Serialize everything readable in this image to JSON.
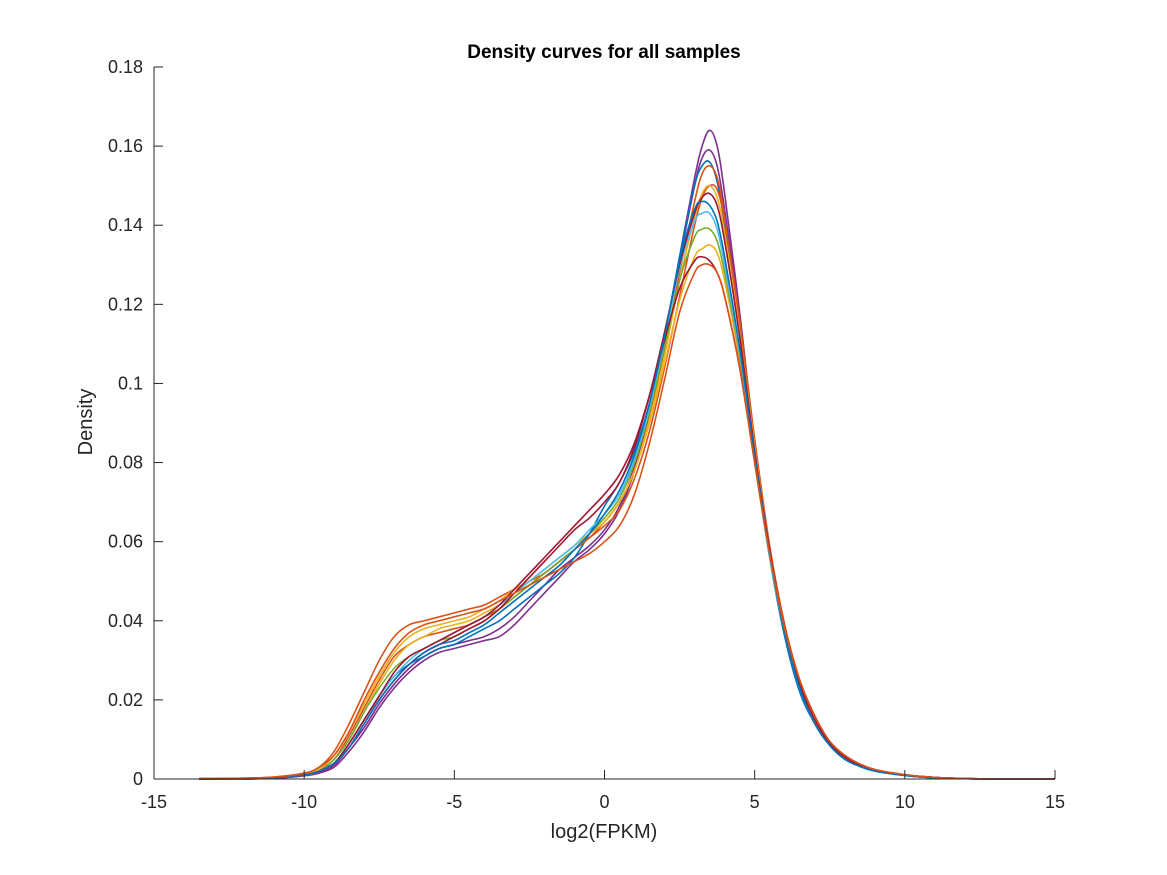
{
  "chart_data": {
    "type": "line",
    "title": "Density curves for all samples",
    "xlabel": "log2(FPKM)",
    "ylabel": "Density",
    "xlim": [
      -15,
      15
    ],
    "ylim": [
      0,
      0.18
    ],
    "xticks": [
      -15,
      -10,
      -5,
      0,
      5,
      10,
      15
    ],
    "xtick_labels": [
      "-15",
      "-10",
      "-5",
      "0",
      "5",
      "10",
      "15"
    ],
    "yticks": [
      0,
      0.02,
      0.04,
      0.06,
      0.08,
      0.1,
      0.12,
      0.14,
      0.16,
      0.18
    ],
    "ytick_labels": [
      "0",
      "0.02",
      "0.04",
      "0.06",
      "0.08",
      "0.1",
      "0.12",
      "0.14",
      "0.16",
      "0.18"
    ],
    "grid": false,
    "legend": "none",
    "x": [
      -13.5,
      -12,
      -11,
      -10,
      -9.5,
      -9,
      -8.5,
      -8,
      -7.5,
      -7,
      -6.5,
      -6,
      -5.5,
      -5,
      -4.5,
      -4,
      -3.5,
      -3,
      -2.5,
      -2,
      -1.5,
      -1,
      -0.5,
      0,
      0.5,
      1,
      1.5,
      2,
      2.5,
      3,
      3.25,
      3.5,
      3.75,
      4,
      4.5,
      5,
      5.5,
      6,
      6.5,
      7,
      7.5,
      8,
      8.5,
      9,
      10,
      11,
      12,
      13,
      15
    ],
    "series": [
      {
        "color": "#7E2F8E",
        "values": [
          0,
          0,
          0.0002,
          0.0008,
          0.0015,
          0.003,
          0.007,
          0.012,
          0.018,
          0.023,
          0.027,
          0.03,
          0.032,
          0.033,
          0.034,
          0.035,
          0.036,
          0.039,
          0.043,
          0.047,
          0.051,
          0.055,
          0.058,
          0.062,
          0.068,
          0.078,
          0.092,
          0.11,
          0.132,
          0.152,
          0.16,
          0.164,
          0.16,
          0.148,
          0.118,
          0.085,
          0.058,
          0.038,
          0.024,
          0.015,
          0.009,
          0.0055,
          0.0035,
          0.0022,
          0.001,
          0.0004,
          0.0001,
          0,
          0
        ]
      },
      {
        "color": "#7E2F8E",
        "values": [
          0,
          0,
          0.0002,
          0.0009,
          0.0017,
          0.0035,
          0.008,
          0.013,
          0.019,
          0.024,
          0.028,
          0.031,
          0.033,
          0.034,
          0.035,
          0.036,
          0.038,
          0.041,
          0.045,
          0.049,
          0.053,
          0.056,
          0.059,
          0.063,
          0.069,
          0.079,
          0.093,
          0.111,
          0.131,
          0.15,
          0.157,
          0.159,
          0.155,
          0.144,
          0.116,
          0.084,
          0.057,
          0.037,
          0.023,
          0.014,
          0.0085,
          0.005,
          0.0032,
          0.002,
          0.0009,
          0.0003,
          0.0001,
          0,
          0
        ]
      },
      {
        "color": "#0072BD",
        "values": [
          0,
          0.0001,
          0.0003,
          0.001,
          0.002,
          0.004,
          0.009,
          0.015,
          0.021,
          0.026,
          0.029,
          0.031,
          0.033,
          0.034,
          0.036,
          0.038,
          0.04,
          0.043,
          0.046,
          0.049,
          0.052,
          0.056,
          0.062,
          0.069,
          0.075,
          0.083,
          0.095,
          0.112,
          0.132,
          0.15,
          0.155,
          0.156,
          0.151,
          0.14,
          0.112,
          0.082,
          0.056,
          0.036,
          0.022,
          0.014,
          0.0085,
          0.005,
          0.0032,
          0.002,
          0.0009,
          0.0003,
          0.0001,
          0,
          0
        ]
      },
      {
        "color": "#D95319",
        "values": [
          0.0001,
          0.0002,
          0.0005,
          0.0015,
          0.003,
          0.007,
          0.014,
          0.022,
          0.03,
          0.036,
          0.039,
          0.04,
          0.041,
          0.042,
          0.043,
          0.044,
          0.046,
          0.048,
          0.05,
          0.052,
          0.055,
          0.058,
          0.061,
          0.064,
          0.068,
          0.076,
          0.088,
          0.104,
          0.122,
          0.14,
          0.147,
          0.15,
          0.149,
          0.141,
          0.116,
          0.086,
          0.059,
          0.039,
          0.025,
          0.015,
          0.009,
          0.0055,
          0.0035,
          0.0022,
          0.001,
          0.0004,
          0.0001,
          0,
          0
        ]
      },
      {
        "color": "#D95319",
        "values": [
          0.0001,
          0.0002,
          0.0004,
          0.0012,
          0.0025,
          0.005,
          0.011,
          0.018,
          0.025,
          0.031,
          0.034,
          0.036,
          0.037,
          0.038,
          0.039,
          0.041,
          0.043,
          0.046,
          0.049,
          0.052,
          0.055,
          0.058,
          0.061,
          0.065,
          0.07,
          0.078,
          0.091,
          0.108,
          0.128,
          0.146,
          0.153,
          0.155,
          0.152,
          0.142,
          0.115,
          0.085,
          0.058,
          0.038,
          0.024,
          0.015,
          0.009,
          0.0055,
          0.0035,
          0.0022,
          0.001,
          0.0004,
          0.0001,
          0,
          0
        ]
      },
      {
        "color": "#EDB120",
        "values": [
          0,
          0.0001,
          0.0004,
          0.0012,
          0.0025,
          0.006,
          0.012,
          0.019,
          0.026,
          0.032,
          0.036,
          0.038,
          0.039,
          0.04,
          0.041,
          0.043,
          0.045,
          0.048,
          0.05,
          0.053,
          0.056,
          0.059,
          0.062,
          0.065,
          0.07,
          0.078,
          0.091,
          0.107,
          0.126,
          0.142,
          0.148,
          0.15,
          0.147,
          0.138,
          0.113,
          0.084,
          0.058,
          0.038,
          0.024,
          0.015,
          0.009,
          0.0055,
          0.0035,
          0.0022,
          0.001,
          0.0004,
          0.0001,
          0,
          0
        ]
      },
      {
        "color": "#EDB120",
        "values": [
          0,
          0.0001,
          0.0003,
          0.001,
          0.002,
          0.005,
          0.01,
          0.017,
          0.024,
          0.03,
          0.034,
          0.036,
          0.038,
          0.039,
          0.04,
          0.042,
          0.044,
          0.047,
          0.05,
          0.053,
          0.056,
          0.059,
          0.062,
          0.065,
          0.07,
          0.078,
          0.09,
          0.105,
          0.121,
          0.132,
          0.134,
          0.135,
          0.133,
          0.126,
          0.106,
          0.08,
          0.056,
          0.037,
          0.024,
          0.015,
          0.009,
          0.0055,
          0.0035,
          0.0022,
          0.001,
          0.0004,
          0.0001,
          0,
          0
        ]
      },
      {
        "color": "#77AC30",
        "values": [
          0,
          0.0001,
          0.0003,
          0.001,
          0.002,
          0.005,
          0.01,
          0.017,
          0.023,
          0.028,
          0.031,
          0.033,
          0.035,
          0.036,
          0.038,
          0.04,
          0.043,
          0.046,
          0.049,
          0.052,
          0.055,
          0.058,
          0.062,
          0.066,
          0.071,
          0.08,
          0.093,
          0.109,
          0.126,
          0.137,
          0.139,
          0.139,
          0.136,
          0.128,
          0.107,
          0.081,
          0.056,
          0.037,
          0.023,
          0.014,
          0.0085,
          0.005,
          0.0032,
          0.002,
          0.0009,
          0.0003,
          0.0001,
          0,
          0
        ]
      },
      {
        "color": "#4DBEEE",
        "values": [
          0,
          0.0001,
          0.0003,
          0.001,
          0.002,
          0.004,
          0.009,
          0.015,
          0.021,
          0.026,
          0.03,
          0.033,
          0.035,
          0.037,
          0.039,
          0.041,
          0.044,
          0.047,
          0.05,
          0.053,
          0.056,
          0.059,
          0.063,
          0.067,
          0.072,
          0.081,
          0.094,
          0.111,
          0.129,
          0.141,
          0.143,
          0.143,
          0.139,
          0.13,
          0.108,
          0.081,
          0.056,
          0.037,
          0.023,
          0.014,
          0.0085,
          0.005,
          0.0032,
          0.002,
          0.0009,
          0.0003,
          0.0001,
          0,
          0
        ]
      },
      {
        "color": "#A2142F",
        "values": [
          0,
          0.0001,
          0.0003,
          0.001,
          0.002,
          0.004,
          0.009,
          0.015,
          0.021,
          0.027,
          0.031,
          0.033,
          0.035,
          0.037,
          0.039,
          0.041,
          0.044,
          0.048,
          0.052,
          0.056,
          0.06,
          0.064,
          0.068,
          0.072,
          0.077,
          0.085,
          0.097,
          0.111,
          0.124,
          0.131,
          0.132,
          0.131,
          0.128,
          0.122,
          0.104,
          0.08,
          0.057,
          0.038,
          0.025,
          0.016,
          0.0095,
          0.006,
          0.0038,
          0.0024,
          0.0011,
          0.0004,
          0.0001,
          0,
          0
        ]
      },
      {
        "color": "#A2142F",
        "values": [
          0,
          0.0001,
          0.0003,
          0.001,
          0.002,
          0.004,
          0.008,
          0.014,
          0.02,
          0.025,
          0.029,
          0.032,
          0.034,
          0.036,
          0.038,
          0.04,
          0.043,
          0.047,
          0.051,
          0.055,
          0.059,
          0.063,
          0.066,
          0.07,
          0.075,
          0.084,
          0.097,
          0.113,
          0.13,
          0.143,
          0.147,
          0.148,
          0.145,
          0.136,
          0.112,
          0.083,
          0.058,
          0.038,
          0.024,
          0.015,
          0.009,
          0.0055,
          0.0035,
          0.0022,
          0.001,
          0.0004,
          0.0001,
          0,
          0
        ]
      },
      {
        "color": "#0072BD",
        "values": [
          0,
          0.0001,
          0.0003,
          0.001,
          0.002,
          0.004,
          0.008,
          0.014,
          0.02,
          0.025,
          0.029,
          0.032,
          0.034,
          0.035,
          0.037,
          0.039,
          0.042,
          0.045,
          0.048,
          0.051,
          0.054,
          0.058,
          0.062,
          0.067,
          0.073,
          0.082,
          0.095,
          0.112,
          0.131,
          0.144,
          0.146,
          0.145,
          0.141,
          0.132,
          0.109,
          0.082,
          0.057,
          0.037,
          0.023,
          0.014,
          0.0085,
          0.005,
          0.0032,
          0.002,
          0.0009,
          0.0003,
          0.0001,
          0,
          0
        ]
      },
      {
        "color": "#D95319",
        "values": [
          0.0001,
          0.0002,
          0.0005,
          0.0014,
          0.003,
          0.006,
          0.012,
          0.02,
          0.027,
          0.033,
          0.037,
          0.039,
          0.04,
          0.041,
          0.042,
          0.043,
          0.045,
          0.047,
          0.049,
          0.051,
          0.053,
          0.055,
          0.057,
          0.06,
          0.064,
          0.072,
          0.085,
          0.101,
          0.118,
          0.128,
          0.13,
          0.13,
          0.128,
          0.122,
          0.104,
          0.08,
          0.057,
          0.038,
          0.025,
          0.016,
          0.0095,
          0.006,
          0.0038,
          0.0024,
          0.0011,
          0.0004,
          0.0001,
          0,
          0
        ]
      }
    ]
  }
}
